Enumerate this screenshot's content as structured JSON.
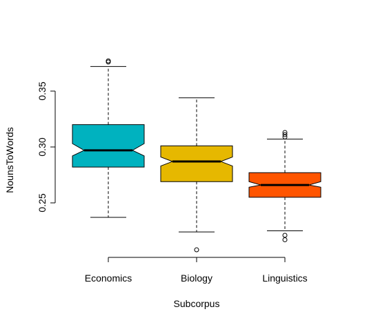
{
  "chart_data": {
    "type": "boxplot",
    "notched": true,
    "title": "",
    "xlabel": "Subcorpus",
    "ylabel": "NounsToWords",
    "ylim": [
      0.2,
      0.38
    ],
    "y_ticks": [
      0.25,
      0.3,
      0.35
    ],
    "y_tick_labels": [
      "0.25",
      "0.30",
      "0.35"
    ],
    "categories": [
      "Economics",
      "Biology",
      "Linguistics"
    ],
    "boxes": [
      {
        "name": "Economics",
        "color": "#00B2BF",
        "whisker_low": 0.237,
        "q1": 0.282,
        "median": 0.297,
        "q3": 0.32,
        "whisker_high": 0.372,
        "notch_low": 0.292,
        "notch_high": 0.303,
        "outliers": [
          0.376,
          0.377
        ]
      },
      {
        "name": "Biology",
        "color": "#E6B800",
        "whisker_low": 0.224,
        "q1": 0.269,
        "median": 0.287,
        "q3": 0.301,
        "whisker_high": 0.344,
        "notch_low": 0.283,
        "notch_high": 0.291,
        "outliers": [
          0.208
        ]
      },
      {
        "name": "Linguistics",
        "color": "#FF5500",
        "whisker_low": 0.225,
        "q1": 0.255,
        "median": 0.266,
        "q3": 0.277,
        "whisker_high": 0.307,
        "notch_low": 0.264,
        "notch_high": 0.269,
        "outliers": [
          0.217,
          0.221,
          0.309,
          0.311,
          0.313
        ]
      }
    ],
    "grid": false,
    "legend": "none"
  }
}
